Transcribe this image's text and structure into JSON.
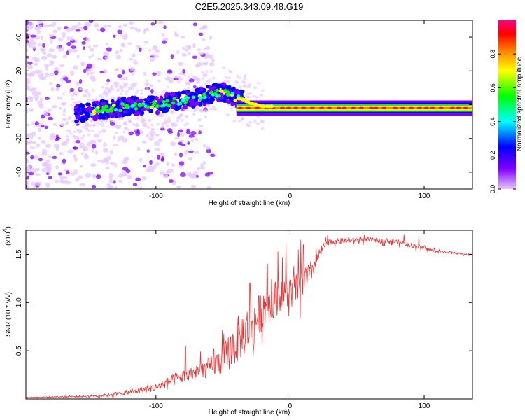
{
  "title": "C2E5.2025.343.09.48.G19",
  "chart_data": [
    {
      "type": "heatmap",
      "xlabel": "Height of straight line (km)",
      "ylabel": "Frequency (Hz)",
      "xlim": [
        -197,
        136
      ],
      "ylim": [
        -50,
        50
      ],
      "xticks": [
        -100,
        0,
        100
      ],
      "xtick_labels": [
        "-100",
        "0",
        "100"
      ],
      "yticks": [
        -40,
        -20,
        0,
        20,
        40
      ],
      "ytick_labels": [
        "-40",
        "-20",
        "0",
        "20",
        "40"
      ],
      "colorbar": {
        "label": "Normalized spectral amplitude",
        "range": [
          0,
          1
        ],
        "ticks": [
          0.0,
          0.2,
          0.4,
          0.6,
          0.8
        ],
        "tick_labels": [
          "0.0",
          "0.2",
          "0.4",
          "0.6",
          "0.8"
        ],
        "stops": [
          "#e6c8ff",
          "#8000ff",
          "#0000ff",
          "#00ffff",
          "#00ff00",
          "#ffff00",
          "#ff8000",
          "#ff0000",
          "#ff0080"
        ]
      },
      "ridge": {
        "x": [
          -155,
          -140,
          -120,
          -100,
          -85,
          -70,
          -60,
          -55,
          -48,
          -45,
          -40,
          -35,
          -30,
          -25,
          -20,
          -10,
          0,
          10,
          20,
          40,
          60,
          80,
          100,
          120,
          136
        ],
        "y": [
          -5,
          -3,
          -1,
          0,
          2,
          4,
          6,
          7,
          7,
          6,
          4,
          3,
          1,
          0,
          -1,
          -1,
          -1,
          -1,
          -2,
          -2,
          -2,
          -2,
          -2,
          -2,
          -2
        ],
        "peak_amplitude_region_x": [
          -40,
          136
        ],
        "peak_frequency": -2
      }
    },
    {
      "type": "line",
      "xlabel": "Height of straight line (km)",
      "ylabel": "SNR (10 * v/v)",
      "multiplier_label": "(x10",
      "multiplier_exp": "4",
      "multiplier_close": ")",
      "xlim": [
        -197,
        136
      ],
      "ylim": [
        0,
        17500
      ],
      "xticks": [
        -100,
        0,
        100
      ],
      "xtick_labels": [
        "-100",
        "0",
        "100"
      ],
      "yticks": [
        5000,
        10000,
        15000
      ],
      "ytick_labels": [
        "0.5",
        "1.0",
        "1.5"
      ],
      "color": "#ee3333",
      "series": [
        {
          "name": "SNR",
          "x": [
            -197,
            -180,
            -160,
            -140,
            -120,
            -100,
            -90,
            -80,
            -70,
            -60,
            -50,
            -45,
            -40,
            -35,
            -30,
            -25,
            -20,
            -15,
            -10,
            -5,
            0,
            5,
            10,
            15,
            20,
            25,
            30,
            40,
            50,
            60,
            70,
            80,
            90,
            100,
            110,
            120,
            130,
            136
          ],
          "y": [
            150,
            200,
            250,
            350,
            700,
            1200,
            1800,
            2300,
            2700,
            3300,
            4000,
            5000,
            6000,
            6800,
            7500,
            8200,
            9500,
            10000,
            10500,
            11000,
            11000,
            11500,
            12000,
            13000,
            14500,
            15800,
            16300,
            16400,
            16500,
            16500,
            16400,
            16300,
            16000,
            15600,
            15300,
            15200,
            15000,
            15000
          ],
          "noise": [
            50,
            80,
            120,
            200,
            350,
            600,
            800,
            1000,
            1200,
            1500,
            2200,
            2800,
            3500,
            3500,
            3500,
            3200,
            3000,
            2800,
            2700,
            2500,
            2500,
            2500,
            2200,
            1800,
            1000,
            600,
            450,
            400,
            350,
            350,
            350,
            350,
            350,
            250,
            200,
            150,
            120,
            120
          ],
          "spikes": [
            [
              -78,
              5500
            ],
            [
              -57,
              5200
            ],
            [
              -30,
              12000
            ],
            [
              -17,
              14000
            ],
            [
              -9,
              15300
            ],
            [
              -3,
              16100
            ],
            [
              5,
              13000
            ],
            [
              8,
              16500
            ],
            [
              10,
              16000
            ],
            [
              15,
              13500
            ],
            [
              28,
              17000
            ],
            [
              85,
              17100
            ],
            [
              96,
              16900
            ]
          ]
        }
      ]
    }
  ]
}
